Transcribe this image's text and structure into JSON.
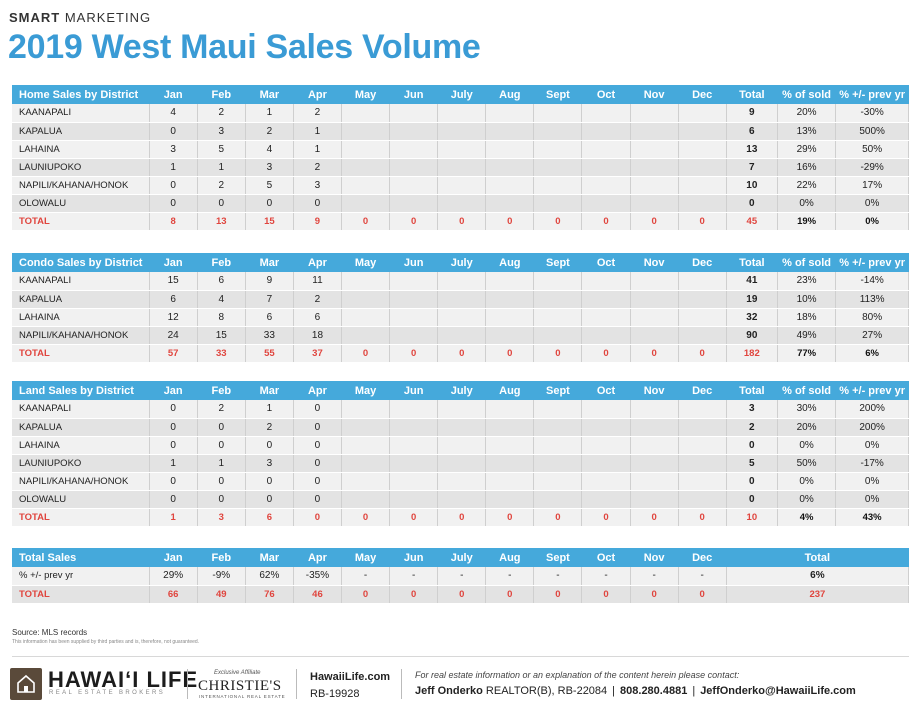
{
  "header": {
    "brand_bold": "SMART",
    "brand_rest": " MARKETING",
    "title": "2019 West Maui Sales Volume"
  },
  "months": [
    "Jan",
    "Feb",
    "Mar",
    "Apr",
    "May",
    "Jun",
    "July",
    "Aug",
    "Sept",
    "Oct",
    "Nov",
    "Dec"
  ],
  "col_total": "Total",
  "col_pct_sold": "% of sold",
  "col_pct_prev": "% +/- prev yr",
  "sections": [
    {
      "label": "Home Sales by District",
      "rows": [
        {
          "name": "KAANAPALI",
          "m": [
            "4",
            "2",
            "1",
            "2",
            "",
            "",
            "",
            "",
            "",
            "",
            "",
            ""
          ],
          "total": "9",
          "pct": "20%",
          "chg": "-30%"
        },
        {
          "name": "KAPALUA",
          "m": [
            "0",
            "3",
            "2",
            "1",
            "",
            "",
            "",
            "",
            "",
            "",
            "",
            ""
          ],
          "total": "6",
          "pct": "13%",
          "chg": "500%"
        },
        {
          "name": "LAHAINA",
          "m": [
            "3",
            "5",
            "4",
            "1",
            "",
            "",
            "",
            "",
            "",
            "",
            "",
            ""
          ],
          "total": "13",
          "pct": "29%",
          "chg": "50%"
        },
        {
          "name": "LAUNIUPOKO",
          "m": [
            "1",
            "1",
            "3",
            "2",
            "",
            "",
            "",
            "",
            "",
            "",
            "",
            ""
          ],
          "total": "7",
          "pct": "16%",
          "chg": "-29%"
        },
        {
          "name": "NAPILI/KAHANA/HONOK",
          "m": [
            "0",
            "2",
            "5",
            "3",
            "",
            "",
            "",
            "",
            "",
            "",
            "",
            ""
          ],
          "total": "10",
          "pct": "22%",
          "chg": "17%"
        },
        {
          "name": "OLOWALU",
          "m": [
            "0",
            "0",
            "0",
            "0",
            "",
            "",
            "",
            "",
            "",
            "",
            "",
            ""
          ],
          "total": "0",
          "pct": "0%",
          "chg": "0%"
        }
      ],
      "total": {
        "name": "TOTAL",
        "m": [
          "8",
          "13",
          "15",
          "9",
          "0",
          "0",
          "0",
          "0",
          "0",
          "0",
          "0",
          "0"
        ],
        "total": "45",
        "pct": "19%",
        "chg": "0%"
      }
    },
    {
      "label": "Condo Sales by District",
      "rows": [
        {
          "name": "KAANAPALI",
          "m": [
            "15",
            "6",
            "9",
            "11",
            "",
            "",
            "",
            "",
            "",
            "",
            "",
            ""
          ],
          "total": "41",
          "pct": "23%",
          "chg": "-14%"
        },
        {
          "name": "KAPALUA",
          "m": [
            "6",
            "4",
            "7",
            "2",
            "",
            "",
            "",
            "",
            "",
            "",
            "",
            ""
          ],
          "total": "19",
          "pct": "10%",
          "chg": "113%"
        },
        {
          "name": "LAHAINA",
          "m": [
            "12",
            "8",
            "6",
            "6",
            "",
            "",
            "",
            "",
            "",
            "",
            "",
            ""
          ],
          "total": "32",
          "pct": "18%",
          "chg": "80%"
        },
        {
          "name": "NAPILI/KAHANA/HONOK",
          "m": [
            "24",
            "15",
            "33",
            "18",
            "",
            "",
            "",
            "",
            "",
            "",
            "",
            ""
          ],
          "total": "90",
          "pct": "49%",
          "chg": "27%"
        }
      ],
      "total": {
        "name": "TOTAL",
        "m": [
          "57",
          "33",
          "55",
          "37",
          "0",
          "0",
          "0",
          "0",
          "0",
          "0",
          "0",
          "0"
        ],
        "total": "182",
        "pct": "77%",
        "chg": "6%"
      }
    },
    {
      "label": "Land Sales by District",
      "rows": [
        {
          "name": "KAANAPALI",
          "m": [
            "0",
            "2",
            "1",
            "0",
            "",
            "",
            "",
            "",
            "",
            "",
            "",
            ""
          ],
          "total": "3",
          "pct": "30%",
          "chg": "200%"
        },
        {
          "name": "KAPALUA",
          "m": [
            "0",
            "0",
            "2",
            "0",
            "",
            "",
            "",
            "",
            "",
            "",
            "",
            ""
          ],
          "total": "2",
          "pct": "20%",
          "chg": "200%"
        },
        {
          "name": "LAHAINA",
          "m": [
            "0",
            "0",
            "0",
            "0",
            "",
            "",
            "",
            "",
            "",
            "",
            "",
            ""
          ],
          "total": "0",
          "pct": "0%",
          "chg": "0%"
        },
        {
          "name": "LAUNIUPOKO",
          "m": [
            "1",
            "1",
            "3",
            "0",
            "",
            "",
            "",
            "",
            "",
            "",
            "",
            ""
          ],
          "total": "5",
          "pct": "50%",
          "chg": "-17%"
        },
        {
          "name": "NAPILI/KAHANA/HONOK",
          "m": [
            "0",
            "0",
            "0",
            "0",
            "",
            "",
            "",
            "",
            "",
            "",
            "",
            ""
          ],
          "total": "0",
          "pct": "0%",
          "chg": "0%"
        },
        {
          "name": "OLOWALU",
          "m": [
            "0",
            "0",
            "0",
            "0",
            "",
            "",
            "",
            "",
            "",
            "",
            "",
            ""
          ],
          "total": "0",
          "pct": "0%",
          "chg": "0%"
        }
      ],
      "total": {
        "name": "TOTAL",
        "m": [
          "1",
          "3",
          "6",
          "0",
          "0",
          "0",
          "0",
          "0",
          "0",
          "0",
          "0",
          "0"
        ],
        "total": "10",
        "pct": "4%",
        "chg": "43%"
      }
    }
  ],
  "summary": {
    "label": "Total Sales",
    "total_label": "Total",
    "pct_row": {
      "name": "% +/- prev yr",
      "m": [
        "29%",
        "-9%",
        "62%",
        "-35%",
        "-",
        "-",
        "-",
        "-",
        "-",
        "-",
        "-",
        "-"
      ],
      "total": "6%"
    },
    "total_row": {
      "name": "TOTAL",
      "m": [
        "66",
        "49",
        "76",
        "46",
        "0",
        "0",
        "0",
        "0",
        "0",
        "0",
        "0",
        "0"
      ],
      "total": "237"
    }
  },
  "footer": {
    "source": "Source: MLS records",
    "disclaimer": "This information has been supplied by third parties and is, therefore, not guaranteed.",
    "logo_name": "HAWAI‘I LIFE",
    "logo_sub": "REAL ESTATE BROKERS",
    "affiliate": "Exclusive Affiliate",
    "christies": "CHRISTIE'S",
    "christies_sub": "INTERNATIONAL REAL ESTATE",
    "website": "HawaiiLife.com",
    "rb": "RB-19928",
    "contact_note": "For real estate information or an explanation of the content herein please contact:",
    "agent_name": "Jeff Onderko",
    "agent_title": " REALTOR(B), RB-22084",
    "phone": "808.280.4881",
    "email": "JeffOnderko@HawaiiLife.com"
  },
  "colors": {
    "accent_blue": "#45a9db",
    "title_blue": "#3a9bd5",
    "total_red": "#e0453e"
  }
}
